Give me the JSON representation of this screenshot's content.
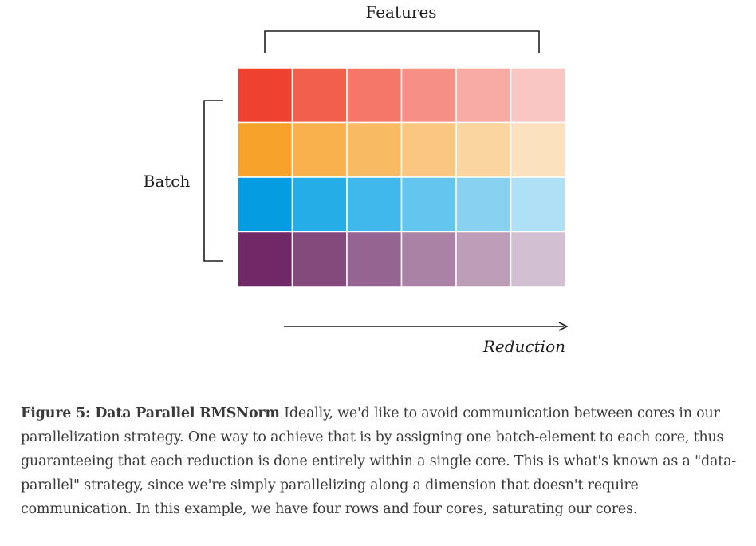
{
  "diagram": {
    "features_label": "Features",
    "batch_label": "Batch",
    "reduction_label": "Reduction",
    "grid": {
      "rows": 4,
      "cols": 6,
      "colors": [
        [
          "#ef412f",
          "#f25f4d",
          "#f4776a",
          "#f68f86",
          "#f8aba5",
          "#fac6c3"
        ],
        [
          "#f6a22b",
          "#f8b14c",
          "#f8ba63",
          "#f9c782",
          "#fbd59f",
          "#fce1bf"
        ],
        [
          "#069ce2",
          "#25ade8",
          "#40b8ec",
          "#64c5ef",
          "#89d1f1",
          "#b0e0f5"
        ],
        [
          "#712866",
          "#854a7c",
          "#956490",
          "#a982a5",
          "#bd9eb9",
          "#d2bfd1"
        ]
      ]
    }
  },
  "caption": {
    "title": "Figure 5: Data Parallel RMSNorm",
    "text": " Ideally, we'd like to avoid communication between cores in our parallelization strategy. One way to achieve that is by assigning one batch-element to each core, thus guaranteeing that each reduction is done entirely within a single core. This is what's known as a \"data-parallel\" strategy, since we're simply parallelizing along a dimension that doesn't require communication. In this example, we have four rows and four cores, saturating our cores."
  }
}
